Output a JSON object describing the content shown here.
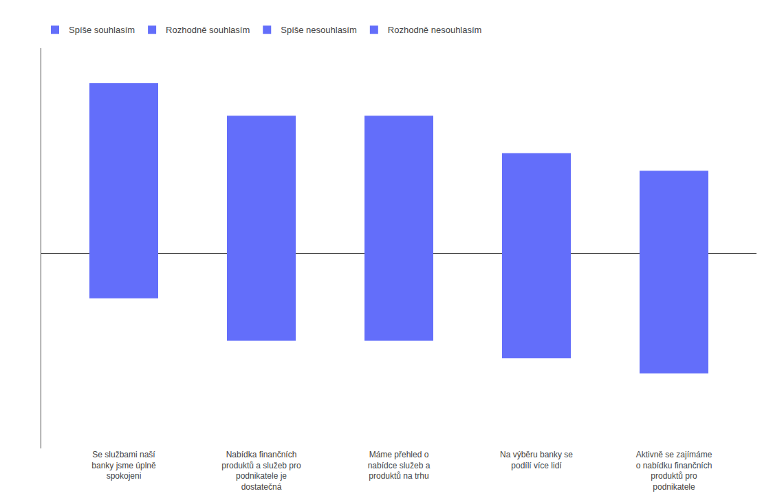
{
  "chart_data": {
    "type": "bar",
    "categories": [
      "Se službami naší\nbanky jsme úplně\nspokojeni",
      "Nabídka finančních\nproduktů a služeb pro\npodnikatele je\ndostatečná",
      "Máme přehled o\nnabídce služeb a\nproduktů na trhu",
      "Na výběru banky se\npodílí více lidí",
      "Aktivně se zajímáme\no nabídku finančních\nproduktů pro\npodnikatele"
    ],
    "values": [
      0.68,
      0.55,
      0.55,
      0.4,
      0.33
    ],
    "bottoms": [
      -0.18,
      -0.35,
      -0.35,
      -0.42,
      -0.48
    ],
    "legend_labels": [
      "Spíše souhlasím",
      "Rozhodně souhlasím",
      "Spíše nesouhlasím",
      "Rozhodně nesouhlasím"
    ],
    "legend": "upper left",
    "ylim": [
      -0.78,
      0.82
    ],
    "tick_labels": "x",
    "grid": false
  }
}
